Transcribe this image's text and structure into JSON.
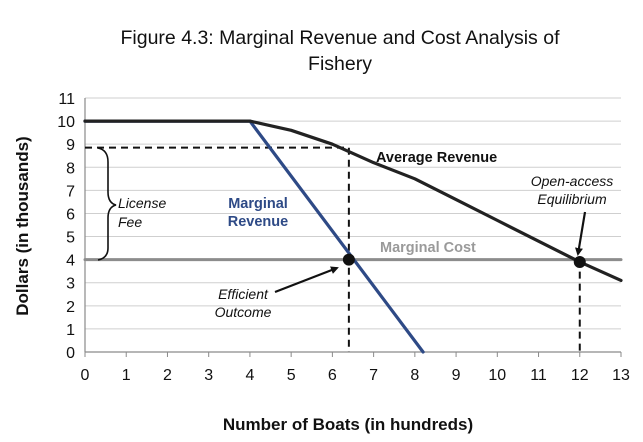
{
  "chart_data": {
    "type": "line",
    "title_lines": [
      "Figure 4.3: Marginal Revenue and Cost Analysis of",
      "Fishery"
    ],
    "xlabel": "Number of Boats (in hundreds)",
    "ylabel": "Dollars (in thousands)",
    "xlim": [
      0,
      13
    ],
    "ylim": [
      0,
      11
    ],
    "x_ticks": [
      0,
      1,
      2,
      3,
      4,
      5,
      6,
      7,
      8,
      9,
      10,
      11,
      12,
      13
    ],
    "y_ticks": [
      0,
      1,
      2,
      3,
      4,
      5,
      6,
      7,
      8,
      9,
      10,
      11
    ],
    "grid": "horizontal",
    "series": [
      {
        "name": "Average Revenue",
        "color": "#222222",
        "points": [
          [
            0,
            10
          ],
          [
            4,
            10
          ],
          [
            5,
            9.6
          ],
          [
            6,
            9.0
          ],
          [
            7,
            8.2
          ],
          [
            8,
            7.5
          ],
          [
            9,
            6.6
          ],
          [
            10,
            5.7
          ],
          [
            11,
            4.8
          ],
          [
            12,
            3.9
          ],
          [
            13,
            3.1
          ]
        ]
      },
      {
        "name": "Marginal Revenue",
        "color": "#2e4a86",
        "points": [
          [
            0,
            10
          ],
          [
            4,
            10
          ],
          [
            8.2,
            0
          ]
        ]
      },
      {
        "name": "Marginal Cost",
        "color": "#8c8c8c",
        "points": [
          [
            0,
            4
          ],
          [
            13,
            4
          ]
        ]
      }
    ],
    "dashed_lines": [
      {
        "points": [
          [
            0,
            8.85
          ],
          [
            6.4,
            8.85
          ],
          [
            6.4,
            0
          ]
        ]
      },
      {
        "points": [
          [
            12,
            4
          ],
          [
            12,
            0
          ]
        ]
      }
    ],
    "markers": [
      {
        "name": "Efficient Outcome",
        "x": 6.4,
        "y": 4
      },
      {
        "name": "Open-access Equilibrium",
        "x": 12,
        "y": 3.9
      }
    ],
    "annotations": {
      "average_revenue": "Average Revenue",
      "marginal_revenue": [
        "Marginal",
        "Revenue"
      ],
      "marginal_cost": "Marginal Cost",
      "license_fee": [
        "License",
        "Fee"
      ],
      "efficient_outcome": [
        "Efficient",
        "Outcome"
      ],
      "open_access": [
        "Open-access",
        "Equilibrium"
      ]
    }
  }
}
